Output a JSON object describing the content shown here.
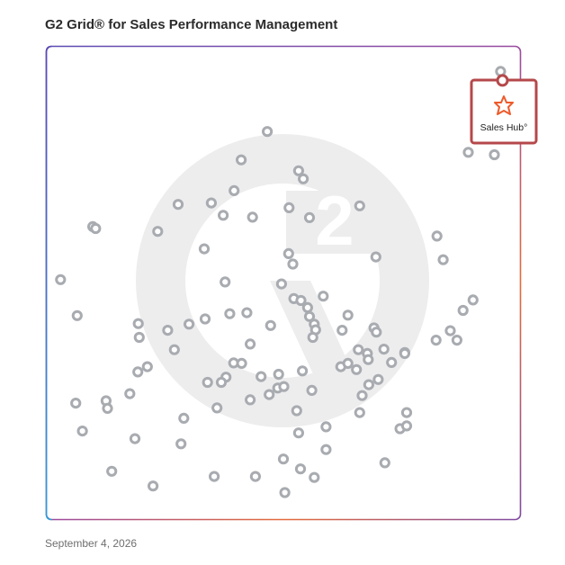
{
  "title": "G2 Grid® for Sales Performance Management",
  "date": "September 4, 2026",
  "colors": {
    "quadrant_divider_horizontal": "#7a57a8",
    "quadrant_divider_vertical": "#8a5aa2",
    "highlight_box": "#b5484a",
    "highlight_icon": "#ee5a2a",
    "marker_stroke": "#a8abb0",
    "watermark": "#ededee"
  },
  "icons": [
    "g2-watermark-icon",
    "hubspot-sprocket-icon"
  ],
  "chart_data": {
    "type": "scatter",
    "title": "G2 Grid® for Sales Performance Management",
    "xlabel": "",
    "ylabel": "",
    "xlim": [
      0,
      100
    ],
    "ylim": [
      0,
      100
    ],
    "grid": false,
    "quadrant_split": {
      "x": 50,
      "y": 50
    },
    "highlight": {
      "name": "Sales Hub",
      "label": "Sales Hub°",
      "x": 96.2,
      "y": 92.8
    },
    "points": [
      [
        95.8,
        94.7
      ],
      [
        94.5,
        77.1
      ],
      [
        89.0,
        77.6
      ],
      [
        46.6,
        82.0
      ],
      [
        41.1,
        76.0
      ],
      [
        54.2,
        72.0
      ],
      [
        53.2,
        73.7
      ],
      [
        39.6,
        69.5
      ],
      [
        27.8,
        66.6
      ],
      [
        34.8,
        66.9
      ],
      [
        37.3,
        64.3
      ],
      [
        43.5,
        63.9
      ],
      [
        51.2,
        65.9
      ],
      [
        55.5,
        63.8
      ],
      [
        66.1,
        66.3
      ],
      [
        9.8,
        61.9
      ],
      [
        10.4,
        61.5
      ],
      [
        23.5,
        60.9
      ],
      [
        33.3,
        57.2
      ],
      [
        51.1,
        56.2
      ],
      [
        69.5,
        55.5
      ],
      [
        82.4,
        59.9
      ],
      [
        83.7,
        54.9
      ],
      [
        3.0,
        50.7
      ],
      [
        37.7,
        50.2
      ],
      [
        49.6,
        49.8
      ],
      [
        52.2,
        46.7
      ],
      [
        53.7,
        46.3
      ],
      [
        55.1,
        44.8
      ],
      [
        58.4,
        47.2
      ],
      [
        6.5,
        43.1
      ],
      [
        19.4,
        41.4
      ],
      [
        19.6,
        38.5
      ],
      [
        25.6,
        40.0
      ],
      [
        30.1,
        41.3
      ],
      [
        33.5,
        42.4
      ],
      [
        38.7,
        43.5
      ],
      [
        42.3,
        43.7
      ],
      [
        47.3,
        41.0
      ],
      [
        55.5,
        42.9
      ],
      [
        56.5,
        41.3
      ],
      [
        56.8,
        40.1
      ],
      [
        56.2,
        38.5
      ],
      [
        62.4,
        40.0
      ],
      [
        63.6,
        43.2
      ],
      [
        69.1,
        40.5
      ],
      [
        69.6,
        39.6
      ],
      [
        85.2,
        39.9
      ],
      [
        87.9,
        44.2
      ],
      [
        90.0,
        46.4
      ],
      [
        82.2,
        37.9
      ],
      [
        86.6,
        37.9
      ],
      [
        27.0,
        35.9
      ],
      [
        43.0,
        37.1
      ],
      [
        65.8,
        35.9
      ],
      [
        67.7,
        35.1
      ],
      [
        71.2,
        36.0
      ],
      [
        75.6,
        35.3
      ],
      [
        21.3,
        32.3
      ],
      [
        19.3,
        31.2
      ],
      [
        39.5,
        33.1
      ],
      [
        41.2,
        33.0
      ],
      [
        54.0,
        31.4
      ],
      [
        62.1,
        32.3
      ],
      [
        63.6,
        33.0
      ],
      [
        65.4,
        31.7
      ],
      [
        67.9,
        33.8
      ],
      [
        72.8,
        33.2
      ],
      [
        75.6,
        35.1
      ],
      [
        70.0,
        29.6
      ],
      [
        68.0,
        28.5
      ],
      [
        66.6,
        26.2
      ],
      [
        37.9,
        30.1
      ],
      [
        36.9,
        29.0
      ],
      [
        34.0,
        29.0
      ],
      [
        45.3,
        30.2
      ],
      [
        49.0,
        30.7
      ],
      [
        47.0,
        26.4
      ],
      [
        48.8,
        27.8
      ],
      [
        50.1,
        28.1
      ],
      [
        43.0,
        25.3
      ],
      [
        56.0,
        27.3
      ],
      [
        17.6,
        26.6
      ],
      [
        6.2,
        24.6
      ],
      [
        12.6,
        25.1
      ],
      [
        12.9,
        23.5
      ],
      [
        36.0,
        23.6
      ],
      [
        29.0,
        21.4
      ],
      [
        52.8,
        23.0
      ],
      [
        66.1,
        22.6
      ],
      [
        76.0,
        22.6
      ],
      [
        59.0,
        19.6
      ],
      [
        74.6,
        19.2
      ],
      [
        76.0,
        19.8
      ],
      [
        7.6,
        18.7
      ],
      [
        18.7,
        17.1
      ],
      [
        28.4,
        16.0
      ],
      [
        53.2,
        18.3
      ],
      [
        50.0,
        12.8
      ],
      [
        53.6,
        10.7
      ],
      [
        56.5,
        8.9
      ],
      [
        22.5,
        7.1
      ],
      [
        44.1,
        9.1
      ],
      [
        35.4,
        9.1
      ],
      [
        50.3,
        5.7
      ],
      [
        13.8,
        10.2
      ],
      [
        59.0,
        14.8
      ],
      [
        71.4,
        12.0
      ],
      [
        52.0,
        54.0
      ]
    ]
  }
}
